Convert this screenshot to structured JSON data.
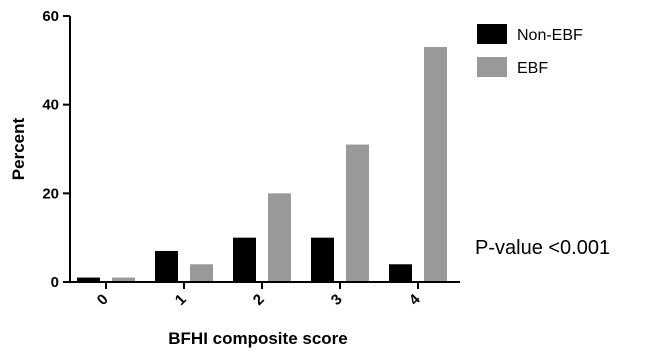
{
  "chart_data": {
    "type": "bar",
    "title": "",
    "xlabel": "BFHI composite score",
    "ylabel": "Percent",
    "categories": [
      "0",
      "1",
      "2",
      "3",
      "4"
    ],
    "series": [
      {
        "name": "Non-EBF",
        "color": "#000000",
        "values": [
          1,
          7,
          10,
          10,
          4
        ]
      },
      {
        "name": "EBF",
        "color": "#999999",
        "values": [
          1,
          4,
          20,
          31,
          53
        ]
      }
    ],
    "ylim": [
      0,
      60
    ],
    "yticks": [
      0,
      20,
      40,
      60
    ],
    "grid": false,
    "legend_position": "top-right",
    "annotation": "P-value <0.001"
  }
}
